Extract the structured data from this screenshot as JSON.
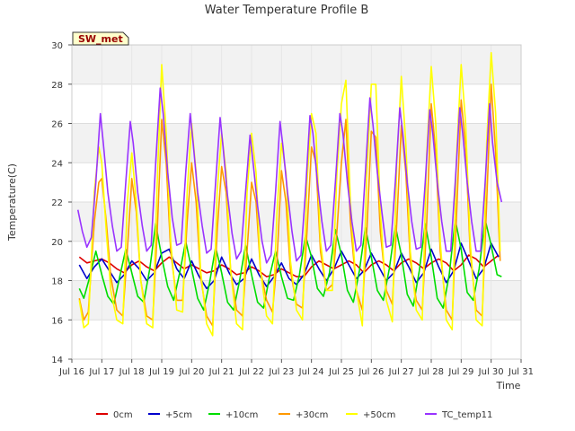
{
  "chart_data": {
    "type": "line",
    "title": "Water Temperature Profile B",
    "xlabel": "Time",
    "ylabel": "Temperature(C)",
    "site_label": "SW_met",
    "xlim": [
      16.0,
      31.0
    ],
    "ylim": [
      14,
      30
    ],
    "yticks": [
      14,
      16,
      18,
      20,
      22,
      24,
      26,
      28,
      30
    ],
    "xticks": [
      {
        "v": 16,
        "label": "Jul 16"
      },
      {
        "v": 17,
        "label": "Jul 17"
      },
      {
        "v": 18,
        "label": "Jul 18"
      },
      {
        "v": 19,
        "label": "Jul 19"
      },
      {
        "v": 20,
        "label": "Jul 20"
      },
      {
        "v": 21,
        "label": "Jul 21"
      },
      {
        "v": 22,
        "label": "Jul 22"
      },
      {
        "v": 23,
        "label": "Jul 23"
      },
      {
        "v": 24,
        "label": "Jul 24"
      },
      {
        "v": 25,
        "label": "Jul 25"
      },
      {
        "v": 26,
        "label": "Jul 26"
      },
      {
        "v": 27,
        "label": "Jul 27"
      },
      {
        "v": 28,
        "label": "Jul 28"
      },
      {
        "v": 29,
        "label": "Jul 29"
      },
      {
        "v": 30,
        "label": "Jul 30"
      },
      {
        "v": 31,
        "label": "Jul 31"
      }
    ],
    "grid": true,
    "legend_position": "bottom",
    "series": [
      {
        "name": "0cm",
        "color": "#dd0000",
        "x": [
          16.25,
          16.5,
          16.75,
          17.0,
          17.25,
          17.5,
          17.75,
          18.0,
          18.25,
          18.5,
          18.75,
          19.0,
          19.25,
          19.5,
          19.75,
          20.0,
          20.25,
          20.5,
          20.75,
          21.0,
          21.25,
          21.5,
          21.75,
          22.0,
          22.25,
          22.5,
          22.75,
          23.0,
          23.25,
          23.5,
          23.75,
          24.0,
          24.25,
          24.5,
          24.75,
          25.0,
          25.25,
          25.5,
          25.75,
          26.0,
          26.25,
          26.5,
          26.75,
          27.0,
          27.25,
          27.5,
          27.75,
          28.0,
          28.25,
          28.5,
          28.75,
          29.0,
          29.25,
          29.5,
          29.75,
          30.0,
          30.25
        ],
        "y": [
          19.2,
          18.9,
          19.0,
          19.1,
          18.9,
          18.6,
          18.4,
          18.8,
          19.0,
          18.7,
          18.5,
          18.9,
          19.2,
          18.9,
          18.6,
          18.8,
          18.6,
          18.4,
          18.5,
          18.8,
          18.6,
          18.3,
          18.4,
          18.7,
          18.5,
          18.2,
          18.3,
          18.6,
          18.4,
          18.2,
          18.2,
          18.7,
          19.0,
          18.8,
          18.6,
          18.8,
          19.0,
          18.8,
          18.4,
          18.8,
          19.0,
          18.8,
          18.5,
          18.9,
          19.1,
          18.9,
          18.6,
          18.9,
          19.1,
          18.9,
          18.5,
          18.8,
          19.3,
          19.1,
          18.7,
          19.0,
          19.3
        ]
      },
      {
        "name": "+5cm",
        "color": "#0000cc",
        "x": [
          16.25,
          16.5,
          16.75,
          17.0,
          17.25,
          17.5,
          17.75,
          18.0,
          18.25,
          18.5,
          18.75,
          19.0,
          19.25,
          19.5,
          19.75,
          20.0,
          20.25,
          20.5,
          20.75,
          21.0,
          21.25,
          21.5,
          21.75,
          22.0,
          22.25,
          22.5,
          22.75,
          23.0,
          23.25,
          23.5,
          23.75,
          24.0,
          24.25,
          24.5,
          24.75,
          25.0,
          25.25,
          25.5,
          25.75,
          26.0,
          26.25,
          26.5,
          26.75,
          27.0,
          27.25,
          27.5,
          27.75,
          28.0,
          28.25,
          28.5,
          28.75,
          29.0,
          29.25,
          29.5,
          29.75,
          30.0,
          30.25
        ],
        "y": [
          18.8,
          18.1,
          18.7,
          19.1,
          18.5,
          17.9,
          18.3,
          19.0,
          18.6,
          18.0,
          18.4,
          19.4,
          19.6,
          18.6,
          18.1,
          19.0,
          18.2,
          17.6,
          18.0,
          19.2,
          18.4,
          17.8,
          18.1,
          19.1,
          18.3,
          17.7,
          18.2,
          18.9,
          18.1,
          17.8,
          18.3,
          19.3,
          18.6,
          18.0,
          18.6,
          19.5,
          18.8,
          18.1,
          18.5,
          19.4,
          18.7,
          18.0,
          18.4,
          19.4,
          18.7,
          17.9,
          18.4,
          19.6,
          18.7,
          17.9,
          18.5,
          19.9,
          19.0,
          18.1,
          18.6,
          19.9,
          19.2
        ]
      },
      {
        "name": "+10cm",
        "color": "#00dd00",
        "x": [
          16.25,
          16.4,
          16.6,
          16.8,
          17.0,
          17.2,
          17.4,
          17.6,
          17.8,
          18.0,
          18.2,
          18.4,
          18.6,
          18.8,
          19.0,
          19.2,
          19.4,
          19.6,
          19.8,
          20.0,
          20.2,
          20.4,
          20.6,
          20.8,
          21.0,
          21.2,
          21.4,
          21.6,
          21.8,
          22.0,
          22.2,
          22.4,
          22.6,
          22.8,
          23.0,
          23.2,
          23.4,
          23.6,
          23.8,
          24.0,
          24.2,
          24.4,
          24.6,
          24.8,
          25.0,
          25.2,
          25.4,
          25.6,
          25.8,
          26.0,
          26.2,
          26.4,
          26.6,
          26.8,
          27.0,
          27.2,
          27.4,
          27.6,
          27.8,
          28.0,
          28.2,
          28.4,
          28.6,
          28.8,
          29.0,
          29.2,
          29.4,
          29.6,
          29.8,
          30.0,
          30.2,
          30.35
        ],
        "y": [
          17.6,
          17.1,
          18.2,
          19.5,
          18.3,
          17.2,
          16.8,
          18.2,
          19.6,
          18.4,
          17.2,
          16.9,
          18.6,
          20.9,
          19.2,
          17.7,
          17.0,
          18.4,
          20.0,
          18.6,
          17.1,
          16.5,
          17.9,
          19.7,
          18.4,
          16.9,
          16.5,
          18.0,
          19.8,
          18.3,
          16.9,
          16.6,
          18.2,
          19.5,
          18.2,
          17.1,
          17.0,
          18.3,
          20.3,
          19.2,
          17.6,
          17.2,
          18.4,
          20.6,
          19.3,
          17.5,
          16.9,
          18.5,
          20.7,
          19.2,
          17.5,
          17.0,
          18.6,
          20.8,
          19.3,
          17.3,
          16.7,
          18.5,
          20.9,
          19.2,
          17.1,
          16.6,
          18.3,
          21.1,
          19.6,
          17.4,
          17.0,
          18.6,
          21.1,
          19.8,
          18.3,
          18.2
        ]
      },
      {
        "name": "+30cm",
        "color": "#ff9900",
        "x": [
          16.25,
          16.4,
          16.55,
          16.75,
          16.9,
          17.0,
          17.15,
          17.3,
          17.5,
          17.7,
          17.85,
          18.0,
          18.15,
          18.3,
          18.5,
          18.7,
          18.85,
          19.0,
          19.15,
          19.3,
          19.5,
          19.7,
          19.85,
          20.0,
          20.15,
          20.3,
          20.5,
          20.7,
          20.85,
          21.0,
          21.15,
          21.3,
          21.5,
          21.7,
          21.85,
          22.0,
          22.15,
          22.3,
          22.5,
          22.7,
          22.85,
          23.0,
          23.15,
          23.3,
          23.5,
          23.7,
          23.85,
          24.0,
          24.15,
          24.3,
          24.5,
          24.7,
          24.85,
          25.0,
          25.15,
          25.3,
          25.5,
          25.7,
          25.85,
          26.0,
          26.15,
          26.3,
          26.5,
          26.7,
          26.85,
          27.0,
          27.15,
          27.3,
          27.5,
          27.7,
          27.85,
          28.0,
          28.15,
          28.3,
          28.5,
          28.7,
          28.85,
          29.0,
          29.15,
          29.3,
          29.5,
          29.7,
          29.85,
          30.0,
          30.15,
          30.3
        ],
        "y": [
          17.1,
          16.0,
          16.4,
          21.0,
          23.0,
          23.2,
          21.0,
          18.2,
          16.5,
          16.2,
          19.5,
          23.2,
          21.5,
          18.0,
          16.2,
          16.0,
          20.5,
          26.2,
          24.0,
          19.5,
          17.0,
          17.0,
          21.0,
          24.0,
          22.0,
          18.2,
          16.2,
          15.7,
          20.5,
          23.8,
          22.5,
          18.5,
          16.5,
          16.2,
          19.5,
          23.0,
          22.0,
          18.5,
          17.0,
          16.4,
          19.0,
          23.6,
          22.0,
          18.5,
          16.8,
          16.6,
          20.5,
          24.8,
          24.0,
          19.5,
          17.5,
          17.8,
          20.5,
          24.0,
          26.2,
          21.0,
          17.5,
          16.5,
          20.5,
          25.6,
          25.3,
          20.5,
          17.5,
          16.8,
          21.0,
          25.9,
          23.5,
          19.0,
          17.0,
          16.5,
          21.0,
          27.0,
          24.5,
          19.5,
          16.5,
          16.0,
          21.5,
          27.2,
          24.8,
          19.5,
          16.5,
          16.2,
          22.0,
          28.0,
          24.5,
          19.0
        ]
      },
      {
        "name": "+50cm",
        "color": "#ffff00",
        "x": [
          16.25,
          16.4,
          16.55,
          16.75,
          16.9,
          17.0,
          17.15,
          17.3,
          17.5,
          17.7,
          17.85,
          18.0,
          18.15,
          18.3,
          18.5,
          18.7,
          18.85,
          19.0,
          19.15,
          19.3,
          19.5,
          19.7,
          19.85,
          20.0,
          20.15,
          20.3,
          20.5,
          20.7,
          20.85,
          21.0,
          21.15,
          21.3,
          21.5,
          21.7,
          21.85,
          22.0,
          22.15,
          22.3,
          22.5,
          22.7,
          22.85,
          23.0,
          23.15,
          23.3,
          23.5,
          23.7,
          23.85,
          24.0,
          24.15,
          24.3,
          24.5,
          24.7,
          24.85,
          25.0,
          25.15,
          25.3,
          25.5,
          25.7,
          25.85,
          26.0,
          26.15,
          26.3,
          26.5,
          26.7,
          26.85,
          27.0,
          27.15,
          27.3,
          27.5,
          27.7,
          27.85,
          28.0,
          28.15,
          28.3,
          28.5,
          28.7,
          28.85,
          29.0,
          29.15,
          29.3,
          29.5,
          29.7,
          29.85,
          30.0,
          30.15,
          30.3
        ],
        "y": [
          17.0,
          15.6,
          15.8,
          22.5,
          24.8,
          24.0,
          20.5,
          17.5,
          16.0,
          15.8,
          22.0,
          24.5,
          22.0,
          18.0,
          15.8,
          15.6,
          23.0,
          29.0,
          25.5,
          20.0,
          16.5,
          16.4,
          22.5,
          26.0,
          23.5,
          18.5,
          15.8,
          15.2,
          22.5,
          25.5,
          23.5,
          18.5,
          15.8,
          15.5,
          22.5,
          25.5,
          23.5,
          18.5,
          16.2,
          15.8,
          21.5,
          25.0,
          23.5,
          19.0,
          16.5,
          16.0,
          23.0,
          26.5,
          25.5,
          20.0,
          17.5,
          17.5,
          23.5,
          27.0,
          28.2,
          22.0,
          17.5,
          15.7,
          23.5,
          28.0,
          28.0,
          21.5,
          17.0,
          15.9,
          24.0,
          28.4,
          25.0,
          19.5,
          16.5,
          16.0,
          24.5,
          28.9,
          26.0,
          20.0,
          16.0,
          15.5,
          24.5,
          29.0,
          26.0,
          20.0,
          16.0,
          15.7,
          25.0,
          29.6,
          26.5,
          19.5
        ]
      },
      {
        "name": "TC_temp11",
        "color": "#9933ff",
        "x": [
          16.2,
          16.35,
          16.5,
          16.65,
          16.8,
          16.95,
          17.05,
          17.2,
          17.35,
          17.5,
          17.65,
          17.8,
          17.95,
          18.05,
          18.2,
          18.35,
          18.5,
          18.65,
          18.8,
          18.95,
          19.05,
          19.2,
          19.35,
          19.5,
          19.65,
          19.8,
          19.95,
          20.05,
          20.2,
          20.35,
          20.5,
          20.65,
          20.8,
          20.95,
          21.05,
          21.2,
          21.35,
          21.5,
          21.65,
          21.8,
          21.95,
          22.05,
          22.2,
          22.35,
          22.5,
          22.65,
          22.8,
          22.95,
          23.05,
          23.2,
          23.35,
          23.5,
          23.65,
          23.8,
          23.95,
          24.05,
          24.2,
          24.35,
          24.5,
          24.65,
          24.8,
          24.95,
          25.05,
          25.2,
          25.35,
          25.5,
          25.65,
          25.8,
          25.95,
          26.05,
          26.2,
          26.35,
          26.5,
          26.65,
          26.8,
          26.95,
          27.05,
          27.2,
          27.35,
          27.5,
          27.65,
          27.8,
          27.95,
          28.05,
          28.2,
          28.35,
          28.5,
          28.65,
          28.8,
          28.95,
          29.05,
          29.2,
          29.35,
          29.5,
          29.65,
          29.8,
          29.95,
          30.05,
          30.2,
          30.35
        ],
        "y": [
          21.6,
          20.5,
          19.7,
          20.2,
          23.0,
          26.5,
          25.0,
          22.5,
          20.8,
          19.5,
          19.7,
          23.0,
          26.1,
          25.0,
          22.5,
          20.8,
          19.5,
          19.8,
          24.0,
          27.8,
          26.5,
          23.5,
          21.2,
          19.8,
          19.9,
          23.5,
          26.5,
          25.0,
          22.5,
          20.8,
          19.4,
          19.6,
          23.0,
          26.3,
          24.8,
          22.3,
          20.4,
          19.1,
          19.5,
          22.5,
          25.4,
          24.0,
          21.8,
          20.0,
          18.9,
          19.3,
          22.5,
          26.1,
          24.8,
          22.5,
          20.5,
          19.0,
          19.3,
          22.5,
          26.4,
          25.5,
          23.0,
          21.0,
          19.5,
          19.8,
          23.0,
          26.5,
          25.5,
          23.0,
          21.0,
          19.5,
          19.8,
          23.5,
          27.3,
          26.0,
          23.5,
          21.5,
          19.7,
          19.8,
          23.0,
          26.8,
          25.5,
          23.0,
          21.0,
          19.6,
          19.7,
          23.0,
          26.7,
          25.5,
          23.0,
          21.0,
          19.5,
          19.5,
          23.0,
          26.8,
          25.5,
          23.0,
          21.0,
          19.5,
          19.5,
          23.0,
          27.0,
          25.0,
          23.0,
          22.0
        ]
      }
    ]
  }
}
